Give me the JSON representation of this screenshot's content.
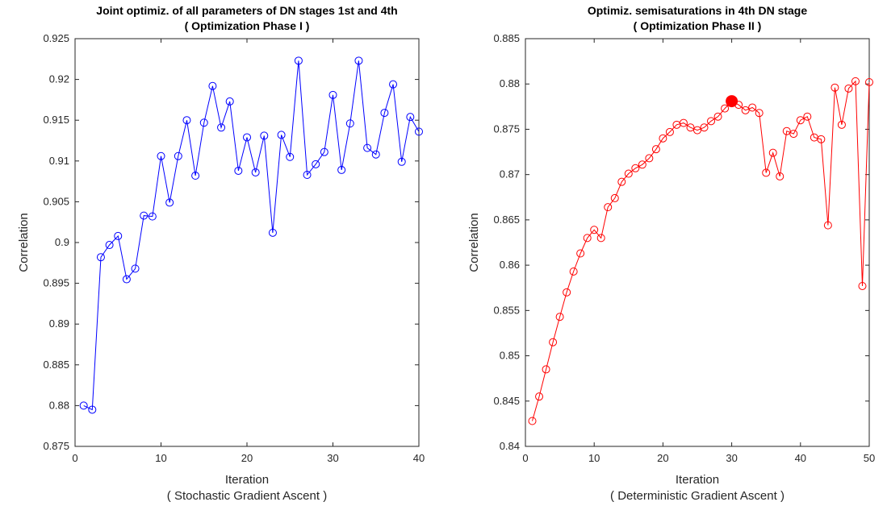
{
  "chart_data": [
    {
      "type": "line",
      "title": "Joint optimiz. of all parameters of DN stages 1st and 4th",
      "subtitle": "( Optimization Phase I )",
      "xlabel": "Iteration",
      "xlabel_sub": "( Stochastic Gradient Ascent )",
      "ylabel": "Correlation",
      "xlim": [
        0,
        40
      ],
      "ylim": [
        0.875,
        0.925
      ],
      "xticks": [
        0,
        10,
        20,
        30,
        40
      ],
      "yticks": [
        0.875,
        0.88,
        0.885,
        0.89,
        0.895,
        0.9,
        0.905,
        0.91,
        0.915,
        0.92,
        0.925
      ],
      "ytick_labels": [
        "0.875",
        "0.88",
        "0.885",
        "0.89",
        "0.895",
        "0.9",
        "0.905",
        "0.91",
        "0.915",
        "0.92",
        "0.925"
      ],
      "grid": false,
      "color": "#0000ff",
      "marker": "circle",
      "x": [
        1,
        2,
        3,
        4,
        5,
        6,
        7,
        8,
        9,
        10,
        11,
        12,
        13,
        14,
        15,
        16,
        17,
        18,
        19,
        20,
        21,
        22,
        23,
        24,
        25,
        26,
        27,
        28,
        29,
        30,
        31,
        32,
        33,
        34,
        35,
        36,
        37,
        38,
        39,
        40
      ],
      "y": [
        0.88,
        0.8795,
        0.8982,
        0.8997,
        0.9008,
        0.8955,
        0.8968,
        0.9033,
        0.9032,
        0.9106,
        0.9049,
        0.9106,
        0.915,
        0.9082,
        0.9147,
        0.9192,
        0.9141,
        0.9173,
        0.9088,
        0.9129,
        0.9086,
        0.9131,
        0.9012,
        0.9132,
        0.9105,
        0.9223,
        0.9083,
        0.9096,
        0.9111,
        0.9181,
        0.9089,
        0.9146,
        0.9223,
        0.9116,
        0.9108,
        0.9159,
        0.9194,
        0.9099,
        0.9154,
        0.9136
      ]
    },
    {
      "type": "line",
      "title": "Optimiz. semisaturations in 4th DN stage",
      "subtitle": "( Optimization Phase II )",
      "xlabel": "Iteration",
      "xlabel_sub": "( Deterministic Gradient Ascent )",
      "ylabel": "Correlation",
      "xlim": [
        0,
        50
      ],
      "ylim": [
        0.84,
        0.885
      ],
      "xticks": [
        0,
        10,
        20,
        30,
        40,
        50
      ],
      "yticks": [
        0.84,
        0.845,
        0.85,
        0.855,
        0.86,
        0.865,
        0.87,
        0.875,
        0.88,
        0.885
      ],
      "ytick_labels": [
        "0.84",
        "0.845",
        "0.85",
        "0.855",
        "0.86",
        "0.865",
        "0.87",
        "0.875",
        "0.88",
        "0.885"
      ],
      "grid": false,
      "color": "#ff0000",
      "marker": "circle",
      "highlight": {
        "x": 30,
        "y": 0.8781
      },
      "x": [
        1,
        2,
        3,
        4,
        5,
        6,
        7,
        8,
        9,
        10,
        11,
        12,
        13,
        14,
        15,
        16,
        17,
        18,
        19,
        20,
        21,
        22,
        23,
        24,
        25,
        26,
        27,
        28,
        29,
        30,
        31,
        32,
        33,
        34,
        35,
        36,
        37,
        38,
        39,
        40,
        41,
        42,
        43,
        44,
        45,
        46,
        47,
        48,
        49,
        50
      ],
      "y": [
        0.8428,
        0.8455,
        0.8485,
        0.8515,
        0.8543,
        0.857,
        0.8593,
        0.8613,
        0.863,
        0.8639,
        0.863,
        0.8664,
        0.8674,
        0.8692,
        0.8701,
        0.8707,
        0.8711,
        0.8718,
        0.8728,
        0.874,
        0.8747,
        0.8755,
        0.8757,
        0.8752,
        0.8749,
        0.8752,
        0.8759,
        0.8764,
        0.8773,
        0.8781,
        0.8777,
        0.8771,
        0.8774,
        0.8768,
        0.8702,
        0.8724,
        0.8698,
        0.8748,
        0.8745,
        0.876,
        0.8764,
        0.8741,
        0.8739,
        0.8644,
        0.8796,
        0.8755,
        0.8795,
        0.8803,
        0.8577,
        0.8802
      ]
    }
  ]
}
